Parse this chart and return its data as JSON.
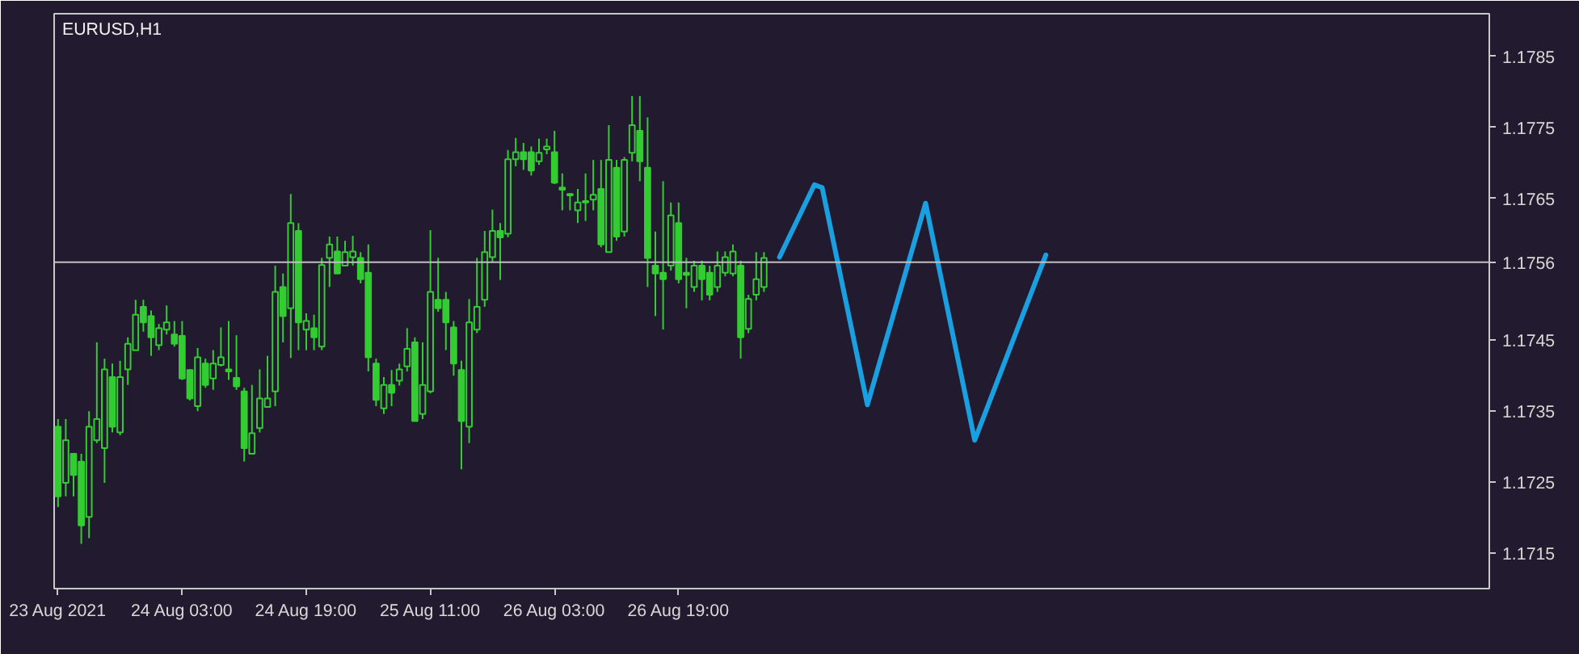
{
  "chart_data": {
    "type": "candlestick",
    "title": "EURUSD,H1",
    "color": "#33cc33",
    "xlim": [
      "2021-08-23T10:30",
      "2021-08-31T03:30"
    ],
    "xticks": [
      {
        "value": "2021-08-23T11:00",
        "label": "23 Aug 2021"
      },
      {
        "value": "2021-08-24T03:00",
        "label": "24 Aug 03:00"
      },
      {
        "value": "2021-08-24T19:00",
        "label": "24 Aug 19:00"
      },
      {
        "value": "2021-08-25T11:00",
        "label": "25 Aug 11:00"
      },
      {
        "value": "2021-08-26T03:00",
        "label": "26 Aug 03:00"
      },
      {
        "value": "2021-08-26T19:00",
        "label": "26 Aug 19:00"
      }
    ],
    "ylim": [
      1.171,
      1.1791
    ],
    "yticks": [
      1.1715,
      1.1725,
      1.1735,
      1.1745,
      1.1765,
      1.1775,
      1.1785
    ],
    "ref_lines": [
      {
        "axis": "y",
        "value": 1.1756,
        "label": "1.1756",
        "color": "#c0c0c0"
      }
    ],
    "x": [
      "2021-08-23T11:00",
      "2021-08-23T12:00",
      "2021-08-23T13:00",
      "2021-08-23T14:00",
      "2021-08-23T15:00",
      "2021-08-23T16:00",
      "2021-08-23T17:00",
      "2021-08-23T18:00",
      "2021-08-23T19:00",
      "2021-08-23T20:00",
      "2021-08-23T21:00",
      "2021-08-23T22:00",
      "2021-08-23T23:00",
      "2021-08-24T00:00",
      "2021-08-24T01:00",
      "2021-08-24T02:00",
      "2021-08-24T03:00",
      "2021-08-24T04:00",
      "2021-08-24T05:00",
      "2021-08-24T06:00",
      "2021-08-24T07:00",
      "2021-08-24T08:00",
      "2021-08-24T09:00",
      "2021-08-24T10:00",
      "2021-08-24T11:00",
      "2021-08-24T12:00",
      "2021-08-24T13:00",
      "2021-08-24T14:00",
      "2021-08-24T15:00",
      "2021-08-24T16:00",
      "2021-08-24T17:00",
      "2021-08-24T18:00",
      "2021-08-24T19:00",
      "2021-08-24T20:00",
      "2021-08-24T21:00",
      "2021-08-24T22:00",
      "2021-08-24T23:00",
      "2021-08-25T00:00",
      "2021-08-25T01:00",
      "2021-08-25T02:00",
      "2021-08-25T03:00",
      "2021-08-25T04:00",
      "2021-08-25T05:00",
      "2021-08-25T06:00",
      "2021-08-25T07:00",
      "2021-08-25T08:00",
      "2021-08-25T09:00",
      "2021-08-25T10:00",
      "2021-08-25T11:00",
      "2021-08-25T12:00",
      "2021-08-25T13:00",
      "2021-08-25T14:00",
      "2021-08-25T15:00",
      "2021-08-25T16:00",
      "2021-08-25T17:00",
      "2021-08-25T18:00",
      "2021-08-25T19:00",
      "2021-08-25T20:00",
      "2021-08-25T21:00",
      "2021-08-25T22:00",
      "2021-08-25T23:00",
      "2021-08-26T00:00",
      "2021-08-26T01:00",
      "2021-08-26T02:00",
      "2021-08-26T03:00",
      "2021-08-26T04:00",
      "2021-08-26T05:00",
      "2021-08-26T06:00",
      "2021-08-26T07:00",
      "2021-08-26T08:00",
      "2021-08-26T09:00",
      "2021-08-26T10:00",
      "2021-08-26T11:00",
      "2021-08-26T12:00",
      "2021-08-26T13:00",
      "2021-08-26T14:00",
      "2021-08-26T15:00",
      "2021-08-26T16:00",
      "2021-08-26T17:00",
      "2021-08-26T18:00",
      "2021-08-26T19:00",
      "2021-08-26T20:00",
      "2021-08-26T21:00",
      "2021-08-26T22:00",
      "2021-08-26T23:00",
      "2021-08-27T00:00",
      "2021-08-27T01:00",
      "2021-08-27T02:00",
      "2021-08-27T03:00",
      "2021-08-27T04:00",
      "2021-08-27T05:00",
      "2021-08-27T06:00"
    ],
    "ohlc": [
      [
        1.17328,
        1.17339,
        1.17215,
        1.1723
      ],
      [
        1.17249,
        1.17339,
        1.1723,
        1.17309
      ],
      [
        1.1729,
        1.1729,
        1.1723,
        1.1726
      ],
      [
        1.17279,
        1.1729,
        1.17163,
        1.17189
      ],
      [
        1.17201,
        1.1735,
        1.17171,
        1.17328
      ],
      [
        1.17309,
        1.17447,
        1.17305,
        1.17339
      ],
      [
        1.17298,
        1.17424,
        1.17249,
        1.17409
      ],
      [
        1.17398,
        1.17417,
        1.1732,
        1.17328
      ],
      [
        1.1732,
        1.17421,
        1.17316,
        1.17398
      ],
      [
        1.17409,
        1.17454,
        1.17387,
        1.17445
      ],
      [
        1.17436,
        1.17507,
        1.17436,
        1.17486
      ],
      [
        1.17497,
        1.17507,
        1.17462,
        1.17475
      ],
      [
        1.17484,
        1.17492,
        1.17428,
        1.17454
      ],
      [
        1.17443,
        1.17473,
        1.17436,
        1.17467
      ],
      [
        1.17465,
        1.17499,
        1.17458,
        1.17475
      ],
      [
        1.17458,
        1.17477,
        1.17441,
        1.17445
      ],
      [
        1.17456,
        1.17477,
        1.17394,
        1.17396
      ],
      [
        1.17408,
        1.17409,
        1.17365,
        1.17368
      ],
      [
        1.17357,
        1.17439,
        1.1735,
        1.17426
      ],
      [
        1.17417,
        1.17424,
        1.17383,
        1.17387
      ],
      [
        1.17396,
        1.17436,
        1.1738,
        1.17417
      ],
      [
        1.17415,
        1.17468,
        1.17413,
        1.17426
      ],
      [
        1.17409,
        1.17477,
        1.17394,
        1.17406
      ],
      [
        1.17397,
        1.17457,
        1.1738,
        1.17385
      ],
      [
        1.17378,
        1.17383,
        1.17279,
        1.17298
      ],
      [
        1.1729,
        1.17387,
        1.17289,
        1.17319
      ],
      [
        1.17326,
        1.17409,
        1.1732,
        1.17368
      ],
      [
        1.17356,
        1.17428,
        1.17356,
        1.17368
      ],
      [
        1.17378,
        1.17555,
        1.17357,
        1.17518
      ],
      [
        1.17525,
        1.17544,
        1.17447,
        1.17484
      ],
      [
        1.17495,
        1.17656,
        1.17425,
        1.17615
      ],
      [
        1.17604,
        1.17615,
        1.17436,
        1.17475
      ],
      [
        1.17465,
        1.17488,
        1.17436,
        1.17477
      ],
      [
        1.17467,
        1.17486,
        1.17436,
        1.17454
      ],
      [
        1.17441,
        1.17566,
        1.17436,
        1.17556
      ],
      [
        1.17566,
        1.17596,
        1.17525,
        1.17585
      ],
      [
        1.17575,
        1.17596,
        1.17544,
        1.17544
      ],
      [
        1.17555,
        1.1759,
        1.17555,
        1.17574
      ],
      [
        1.17567,
        1.17597,
        1.17555,
        1.17575
      ],
      [
        1.17566,
        1.17574,
        1.1753,
        1.17536
      ],
      [
        1.17545,
        1.17585,
        1.17406,
        1.17426
      ],
      [
        1.17417,
        1.17424,
        1.17357,
        1.17366
      ],
      [
        1.17354,
        1.17398,
        1.17346,
        1.17387
      ],
      [
        1.17387,
        1.17408,
        1.17357,
        1.17376
      ],
      [
        1.17393,
        1.17417,
        1.17386,
        1.17409
      ],
      [
        1.17413,
        1.17467,
        1.17406,
        1.17438
      ],
      [
        1.17447,
        1.17454,
        1.17336,
        1.17336
      ],
      [
        1.17346,
        1.17447,
        1.17339,
        1.17387
      ],
      [
        1.17378,
        1.17605,
        1.17375,
        1.17518
      ],
      [
        1.17507,
        1.17566,
        1.1749,
        1.17495
      ],
      [
        1.17507,
        1.17518,
        1.17436,
        1.17475
      ],
      [
        1.17468,
        1.17477,
        1.174,
        1.17417
      ],
      [
        1.17408,
        1.17421,
        1.17268,
        1.17336
      ],
      [
        1.17328,
        1.17508,
        1.17305,
        1.17475
      ],
      [
        1.17465,
        1.17566,
        1.1746,
        1.17497
      ],
      [
        1.17507,
        1.17604,
        1.17497,
        1.17574
      ],
      [
        1.17567,
        1.17634,
        1.1756,
        1.17604
      ],
      [
        1.17604,
        1.17615,
        1.17535,
        1.17595
      ],
      [
        1.176,
        1.17718,
        1.17595,
        1.17705
      ],
      [
        1.17705,
        1.17735,
        1.17695,
        1.17715
      ],
      [
        1.17715,
        1.17728,
        1.1769,
        1.17705
      ],
      [
        1.17715,
        1.17723,
        1.17682,
        1.17689
      ],
      [
        1.17702,
        1.17734,
        1.17697,
        1.17714
      ],
      [
        1.17719,
        1.17734,
        1.17712,
        1.17723
      ],
      [
        1.17715,
        1.17745,
        1.1767,
        1.17672
      ],
      [
        1.17665,
        1.17685,
        1.17633,
        1.17662
      ],
      [
        1.17656,
        1.17657,
        1.17633,
        1.17654
      ],
      [
        1.17633,
        1.17663,
        1.17615,
        1.17644
      ],
      [
        1.17644,
        1.17685,
        1.17618,
        1.17646
      ],
      [
        1.17648,
        1.17704,
        1.17633,
        1.17655
      ],
      [
        1.17663,
        1.17704,
        1.17581,
        1.17585
      ],
      [
        1.17574,
        1.17753,
        1.17574,
        1.17704
      ],
      [
        1.17693,
        1.17704,
        1.1759,
        1.17596
      ],
      [
        1.17603,
        1.17708,
        1.17596,
        1.17704
      ],
      [
        1.17714,
        1.17794,
        1.17702,
        1.17753
      ],
      [
        1.17745,
        1.17794,
        1.17674,
        1.17702
      ],
      [
        1.17693,
        1.17764,
        1.17525,
        1.17566
      ],
      [
        1.17555,
        1.17603,
        1.17484,
        1.17544
      ],
      [
        1.17545,
        1.17674,
        1.17465,
        1.17536
      ],
      [
        1.17555,
        1.17644,
        1.17548,
        1.17626
      ],
      [
        1.17615,
        1.17644,
        1.1753,
        1.17536
      ],
      [
        1.17545,
        1.17566,
        1.17495,
        1.17542
      ],
      [
        1.17525,
        1.17562,
        1.17518,
        1.17555
      ],
      [
        1.17555,
        1.17562,
        1.17506,
        1.17536
      ],
      [
        1.17545,
        1.17555,
        1.17506,
        1.17514
      ],
      [
        1.17525,
        1.17575,
        1.17518,
        1.17555
      ],
      [
        1.17545,
        1.17575,
        1.1754,
        1.17567
      ],
      [
        1.17544,
        1.17585,
        1.1754,
        1.17575
      ],
      [
        1.17555,
        1.17562,
        1.17424,
        1.17454
      ],
      [
        1.17466,
        1.17514,
        1.1746,
        1.17508
      ],
      [
        1.17514,
        1.17574,
        1.17506,
        1.17536
      ],
      [
        1.17525,
        1.17574,
        1.17518,
        1.17566
      ]
    ],
    "series": [
      {
        "type": "line",
        "color": "#1a9fe0",
        "x": [
          "2021-08-27T08:00",
          "2021-08-27T12:30",
          "2021-08-27T13:30",
          "2021-08-27T19:20",
          "2021-08-28T02:50",
          "2021-08-28T09:10",
          "2021-08-28T18:20"
        ],
        "values": [
          1.17567,
          1.17669,
          1.17665,
          1.17359,
          1.17643,
          1.17309,
          1.1757
        ]
      }
    ]
  }
}
